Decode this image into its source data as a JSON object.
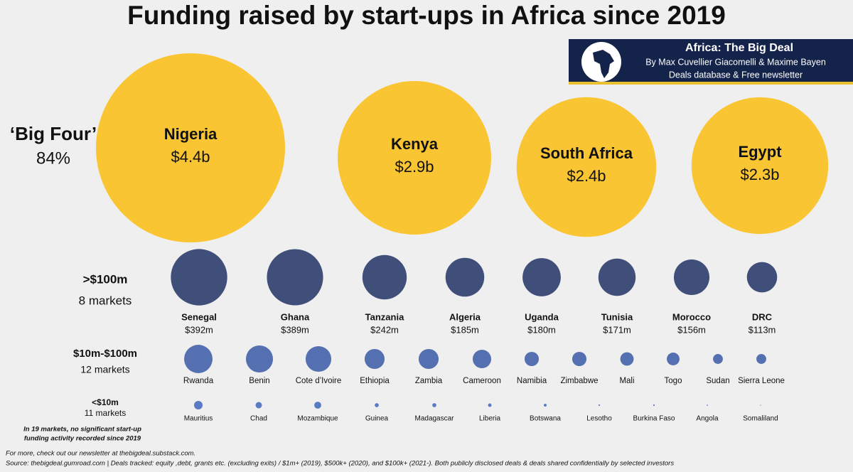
{
  "chart_data": {
    "type": "bubble",
    "title": "Funding raised by start-ups in Africa since 2019",
    "groups": [
      {
        "label": "‘Big Four’",
        "sublabel": "84%",
        "color": "#f9c532",
        "items": [
          {
            "name": "Nigeria",
            "value": 4400,
            "value_label": "$4.4b"
          },
          {
            "name": "Kenya",
            "value": 2900,
            "value_label": "$2.9b"
          },
          {
            "name": "South Africa",
            "value": 2400,
            "value_label": "$2.4b"
          },
          {
            "name": "Egypt",
            "value": 2300,
            "value_label": "$2.3b"
          }
        ]
      },
      {
        "label": ">$100m",
        "sublabel": "8 markets",
        "color": "#3f4f7a",
        "items": [
          {
            "name": "Senegal",
            "value": 392,
            "value_label": "$392m"
          },
          {
            "name": "Ghana",
            "value": 389,
            "value_label": "$389m"
          },
          {
            "name": "Tanzania",
            "value": 242,
            "value_label": "$242m"
          },
          {
            "name": "Algeria",
            "value": 185,
            "value_label": "$185m"
          },
          {
            "name": "Uganda",
            "value": 180,
            "value_label": "$180m"
          },
          {
            "name": "Tunisia",
            "value": 171,
            "value_label": "$171m"
          },
          {
            "name": "Morocco",
            "value": 156,
            "value_label": "$156m"
          },
          {
            "name": "DRC",
            "value": 113,
            "value_label": "$113m"
          }
        ]
      },
      {
        "label": "$10m-$100m",
        "sublabel": "12 markets",
        "color": "#5470b0",
        "items": [
          {
            "name": "Rwanda",
            "value": 99
          },
          {
            "name": "Benin",
            "value": 90
          },
          {
            "name": "Cote d’Ivoire",
            "value": 81
          },
          {
            "name": "Ethiopia",
            "value": 49
          },
          {
            "name": "Zambia",
            "value": 49
          },
          {
            "name": "Cameroon",
            "value": 42
          },
          {
            "name": "Namibia",
            "value": 25
          },
          {
            "name": "Zimbabwe",
            "value": 25
          },
          {
            "name": "Mali",
            "value": 22
          },
          {
            "name": "Togo",
            "value": 20
          },
          {
            "name": "Sudan",
            "value": 12
          },
          {
            "name": "Sierra Leone",
            "value": 12
          }
        ]
      },
      {
        "label": "<$10m",
        "sublabel": "11 markets",
        "color": "#5a7bc4",
        "items": [
          {
            "name": "Mauritius",
            "value": 9
          },
          {
            "name": "Chad",
            "value": 5
          },
          {
            "name": "Mozambique",
            "value": 6
          },
          {
            "name": "Guinea",
            "value": 2
          },
          {
            "name": "Madagascar",
            "value": 2
          },
          {
            "name": "Liberia",
            "value": 1.5
          },
          {
            "name": "Botswana",
            "value": 1
          },
          {
            "name": "Lesotho",
            "value": 0.3
          },
          {
            "name": "Burkina Faso",
            "value": 0.3
          },
          {
            "name": "Angola",
            "value": 0.2
          },
          {
            "name": "Somaliland",
            "value": 0.1
          }
        ]
      }
    ],
    "note": [
      "In 19 markets, no significant start-up",
      "funding activity recorded since 2019"
    ]
  },
  "badge": {
    "title": "Africa: The Big Deal",
    "authors": "By Max Cuvellier Giacomelli & Maxime Bayen",
    "tagline": "Deals database & Free newsletter"
  },
  "footer": [
    "For more, check out our newsletter at thebigdeal.substack.com.",
    "Source: thebigdeal.gumroad.com | Deals tracked: equity ,debt, grants etc. (excluding exits) / $1m+ (2019), $500k+ (2020), and $100k+ (2021-). Both publicly disclosed deals & deals shared confidentially by selected investors"
  ]
}
